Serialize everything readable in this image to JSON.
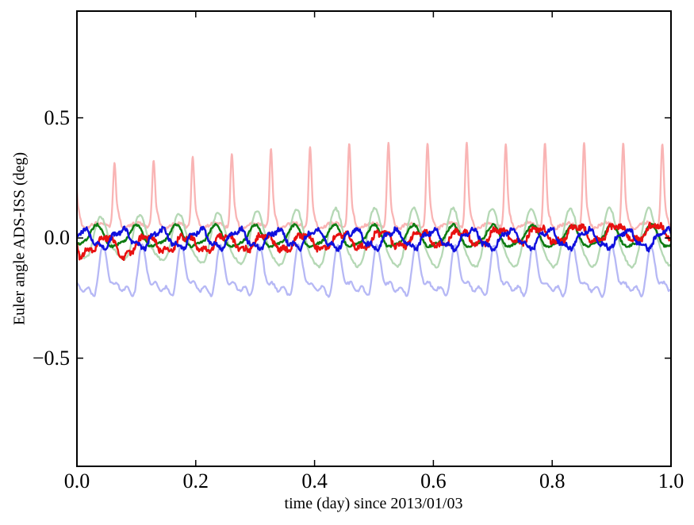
{
  "figure": {
    "background": "#ffffff",
    "frame_color": "#000000",
    "title": ""
  },
  "chart_data": {
    "type": "line",
    "title": "",
    "xlabel": "time (day) since 2013/01/03",
    "ylabel": "Euler angle ADS-ISS (deg)",
    "xlim": [
      0.0,
      1.0
    ],
    "ylim": [
      -0.95,
      0.944
    ],
    "grid": false,
    "legend": "none",
    "xticks": {
      "values": [
        0.0,
        0.2,
        0.4,
        0.6,
        0.8,
        1.0
      ],
      "labels": [
        "0.0",
        "0.2",
        "0.4",
        "0.6",
        "0.8",
        "1.0"
      ]
    },
    "yticks": {
      "values": [
        0.5,
        0.0,
        -0.5
      ],
      "labels": [
        "0.5",
        "0.0",
        "−0.5"
      ]
    },
    "tick_style": {
      "length": 8,
      "width": 1.5,
      "direction": "in",
      "sides": "all-four"
    },
    "orbit_frequency_per_day": 15.18,
    "samples": 1600,
    "series": [
      {
        "name": "series-red-faded",
        "color": "#f9b4b4",
        "width": 2.3,
        "mean": 0.045,
        "approx_range_deg": [
          0.02,
          0.4
        ],
        "envelope": {
          "base": 0.2,
          "grow": 0.1,
          "t_sat": 0.45
        },
        "components": [
          {
            "type": "pulse",
            "f": 15.18,
            "ph": 0.956,
            "sigma": 0.05,
            "amp": 1.0,
            "env": true
          },
          {
            "type": "pulse",
            "f": 15.18,
            "ph": 0.016,
            "sigma": 0.11,
            "amp": 0.085
          },
          {
            "type": "sin",
            "f": 15.18,
            "ph": 0.7,
            "amp": 0.018
          }
        ],
        "noise": {
          "amp": 0.007,
          "cells": 600,
          "seed": 11
        }
      },
      {
        "name": "series-green-faded",
        "color": "#b5d8b5",
        "width": 2.3,
        "mean": -0.012,
        "approx_range_deg": [
          -0.15,
          0.12
        ],
        "envelope": {
          "base": 0.078,
          "grow": 0.04,
          "t_sat": 0.4
        },
        "components": [
          {
            "type": "sin",
            "f": 15.18,
            "ph": 0.621,
            "amp": 1.0,
            "env": true
          },
          {
            "type": "sin",
            "f": 30.36,
            "ph": 0.1,
            "amp": 0.02
          }
        ],
        "noise": {
          "amp": 0.005,
          "cells": 500,
          "seed": 22
        }
      },
      {
        "name": "series-blue-faded",
        "color": "#b6b8f5",
        "width": 2.3,
        "mean": -0.17,
        "approx_range_deg": [
          -0.31,
          -0.04
        ],
        "components": [
          {
            "type": "sin",
            "f": 15.18,
            "ph": 0.544,
            "amp": 0.07
          },
          {
            "type": "sin",
            "f": 30.36,
            "ph": 0.913,
            "amp": 0.045
          },
          {
            "type": "sin",
            "f": 45.54,
            "ph": 0.3,
            "amp": 0.028
          }
        ],
        "noise": {
          "amp": 0.006,
          "cells": 500,
          "seed": 33
        }
      },
      {
        "name": "series-green",
        "color": "#0e7c12",
        "width": 2.5,
        "mean": 0.002,
        "approx_range_deg": [
          -0.07,
          0.07
        ],
        "components": [
          {
            "type": "sin",
            "f": 15.0,
            "ph": 0.77,
            "amp": 0.042
          },
          {
            "type": "sin",
            "f": 30.0,
            "ph": 0.2,
            "amp": 0.012
          }
        ],
        "noise": {
          "amp": 0.005,
          "cells": 700,
          "seed": 55
        }
      },
      {
        "name": "series-red",
        "color": "#e81111",
        "width": 2.5,
        "mean": 0.005,
        "approx_range_deg": [
          -0.1,
          0.08
        ],
        "components": [
          {
            "type": "sin",
            "f": 15.18,
            "ph": 0.468,
            "amp": 0.032
          },
          {
            "type": "sin",
            "f": 45.54,
            "ph": 0.404,
            "amp": 0.01
          },
          {
            "type": "sin",
            "f": 0.4,
            "ph": 0.72,
            "amp": 0.03
          },
          {
            "type": "gauss",
            "t0": 0.075,
            "sigma": 0.012,
            "amp": -0.03
          },
          {
            "type": "gauss",
            "t0": 0.005,
            "sigma": 0.006,
            "amp": -0.04
          }
        ],
        "noise": {
          "amp": 0.013,
          "cells": 900,
          "seed": 44
        }
      },
      {
        "name": "series-blue",
        "color": "#1010dd",
        "width": 2.5,
        "mean": -0.004,
        "approx_range_deg": [
          -0.09,
          0.07
        ],
        "components": [
          {
            "type": "sin",
            "f": 15.3,
            "ph": 0.097,
            "amp": 0.036
          },
          {
            "type": "sin",
            "f": 45.9,
            "ph": 0.5,
            "amp": 0.012
          }
        ],
        "noise": {
          "amp": 0.01,
          "cells": 800,
          "seed": 66
        }
      }
    ]
  }
}
